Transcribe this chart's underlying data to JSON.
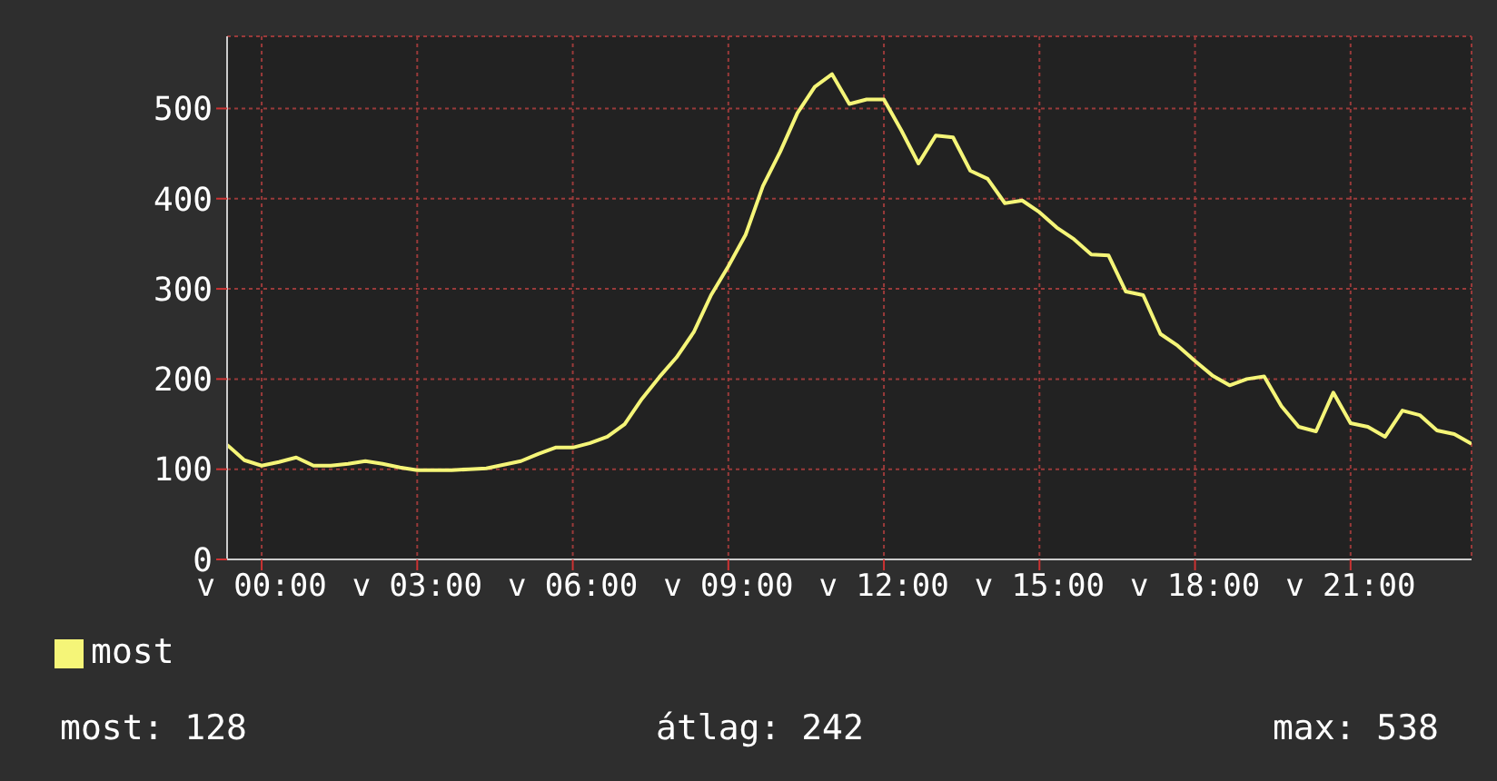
{
  "chart_data": {
    "type": "line",
    "categories": [
      null,
      null,
      "v 00:00",
      null,
      null,
      null,
      null,
      null,
      null,
      null,
      null,
      "v 03:00",
      null,
      null,
      null,
      null,
      null,
      null,
      null,
      null,
      "v 06:00",
      null,
      null,
      null,
      null,
      null,
      null,
      null,
      null,
      "v 09:00",
      null,
      null,
      null,
      null,
      null,
      null,
      null,
      null,
      "v 12:00",
      null,
      null,
      null,
      null,
      null,
      null,
      null,
      null,
      "v 15:00",
      null,
      null,
      null,
      null,
      null,
      null,
      null,
      null,
      "v 18:00",
      null,
      null,
      null,
      null,
      null,
      null,
      null,
      null,
      "v 21:00",
      null,
      null,
      null,
      null,
      null,
      null,
      null
    ],
    "series": [
      {
        "name": "most",
        "color": "#f5f578",
        "values": [
          127,
          110,
          104,
          108,
          113,
          104,
          104,
          106,
          109,
          106,
          102,
          99,
          99,
          99,
          100,
          101,
          105,
          109,
          117,
          124,
          124,
          129,
          136,
          150,
          178,
          202,
          224,
          252,
          293,
          325,
          360,
          414,
          452,
          495,
          524,
          538,
          505,
          510,
          510,
          476,
          439,
          470,
          468,
          431,
          422,
          395,
          398,
          385,
          368,
          355,
          338,
          337,
          297,
          293,
          250,
          237,
          220,
          204,
          193,
          200,
          203,
          170,
          147,
          142,
          185,
          151,
          147,
          136,
          165,
          160,
          143,
          139,
          128
        ]
      }
    ],
    "ylim": [
      0,
      580
    ],
    "yticks": [
      0,
      100,
      200,
      300,
      400,
      500
    ],
    "grid": true,
    "legend": "bottom left",
    "marker": "none",
    "line_style": "solid",
    "annotations": [
      "most: 128",
      "átlag: 242",
      "max: 538"
    ]
  }
}
